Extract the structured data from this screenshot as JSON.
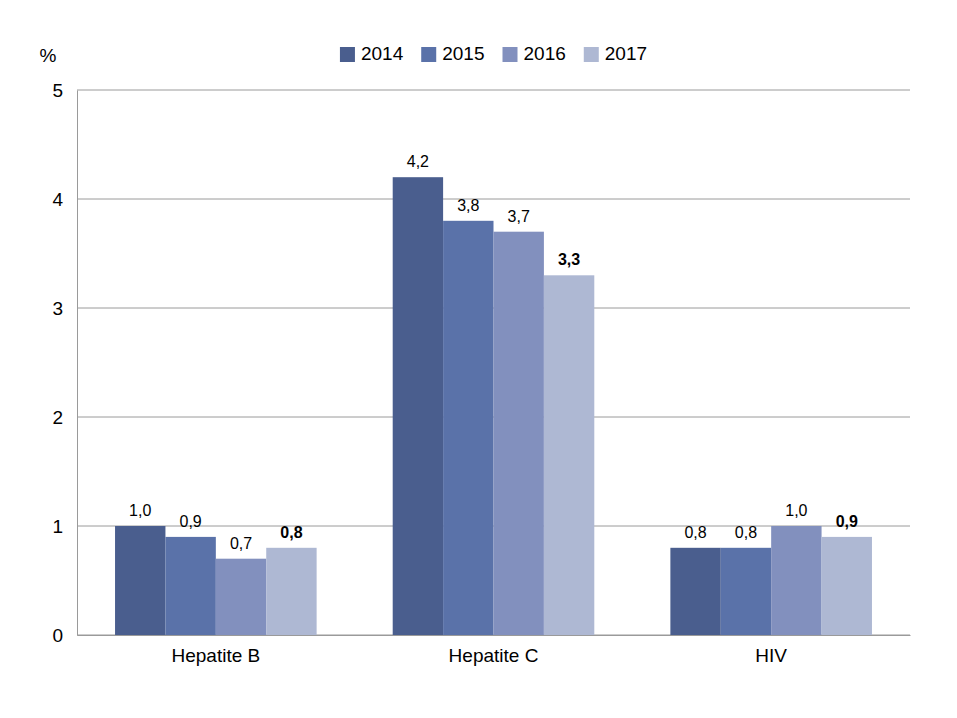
{
  "chart_data": {
    "type": "bar",
    "y_label": "%",
    "categories": [
      "Hepatite B",
      "Hepatite C",
      "HIV"
    ],
    "series": [
      {
        "name": "2014",
        "color": "#4a5e8e",
        "values": [
          1.0,
          4.2,
          0.8
        ],
        "value_labels": [
          "1,0",
          "4,2",
          "0,8"
        ]
      },
      {
        "name": "2015",
        "color": "#5a72a9",
        "values": [
          0.9,
          3.8,
          0.8
        ],
        "value_labels": [
          "0,9",
          "3,8",
          "0,8"
        ]
      },
      {
        "name": "2016",
        "color": "#8290be",
        "values": [
          0.7,
          3.7,
          1.0
        ],
        "value_labels": [
          "0,7",
          "3,7",
          "1,0"
        ]
      },
      {
        "name": "2017",
        "color": "#aeb8d3",
        "values": [
          0.8,
          3.3,
          0.9
        ],
        "value_labels": [
          "0,8",
          "3,3",
          "0,9"
        ]
      }
    ],
    "ylim": [
      0,
      5
    ],
    "yticks": [
      0,
      1,
      2,
      3,
      4,
      5
    ],
    "grid": true,
    "legend": "top",
    "data_labels": true
  }
}
